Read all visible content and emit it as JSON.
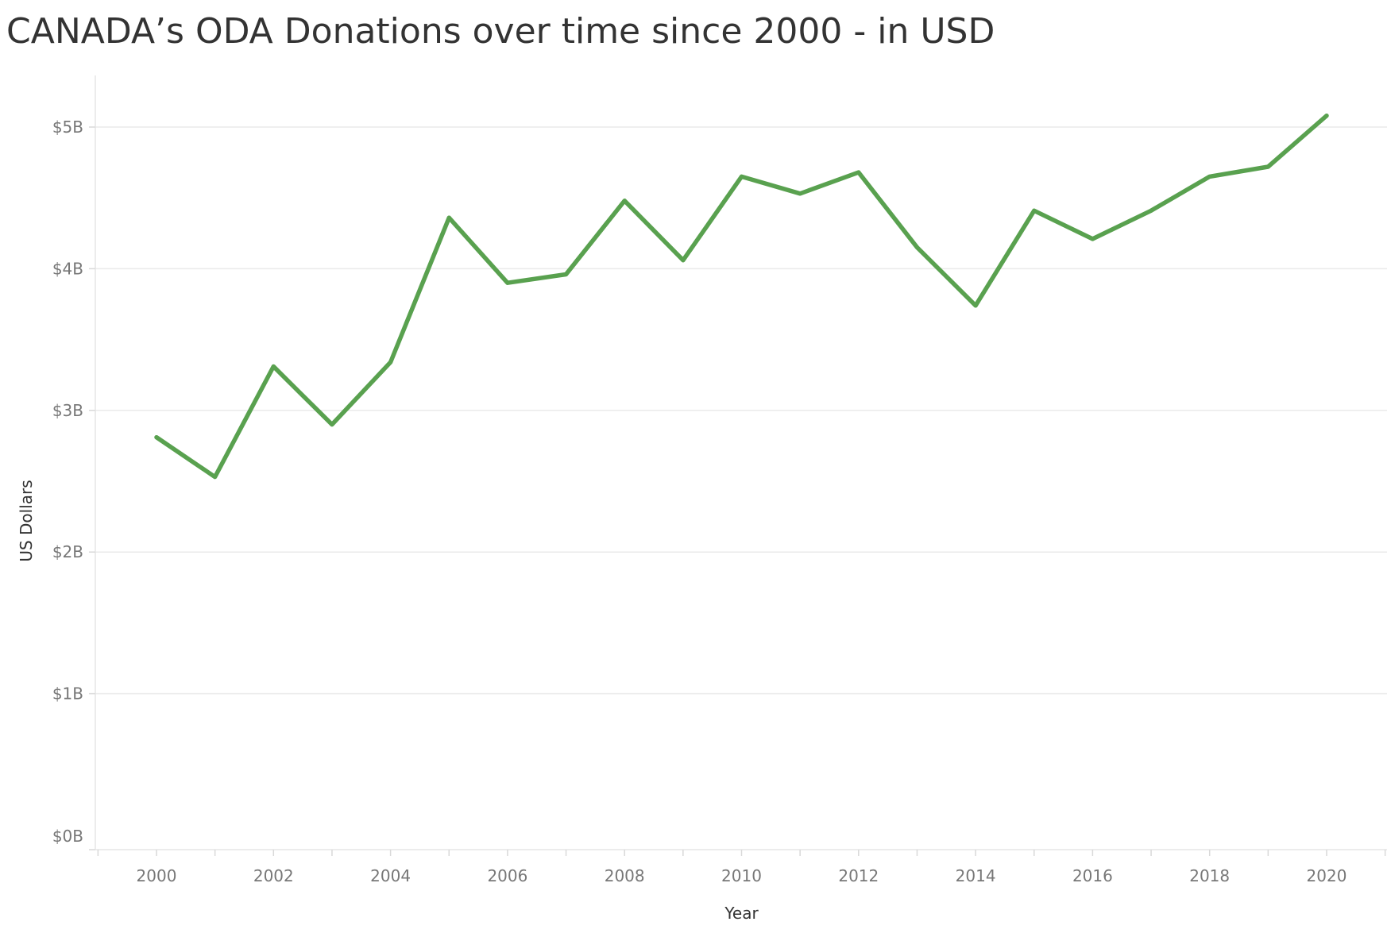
{
  "chart_data": {
    "type": "line",
    "title": "CANADA’s ODA Donations over time since 2000 - in USD",
    "xlabel": "Year",
    "ylabel": "US Dollars",
    "ylim": [
      0,
      5.3
    ],
    "xlim": [
      1999,
      2021
    ],
    "grid": true,
    "y_ticks": [
      0,
      1,
      2,
      3,
      4,
      5
    ],
    "y_tick_labels": [
      "$0B",
      "$1B",
      "$2B",
      "$3B",
      "$4B",
      "$5B"
    ],
    "x_ticks": [
      2000,
      2002,
      2004,
      2006,
      2008,
      2010,
      2012,
      2014,
      2016,
      2018,
      2020
    ],
    "x_tick_labels": [
      "2000",
      "2002",
      "2004",
      "2006",
      "2008",
      "2010",
      "2012",
      "2014",
      "2016",
      "2018",
      "2020"
    ],
    "line_color": "#59a14f",
    "series": [
      {
        "x": [
          2000,
          2001,
          2002,
          2003,
          2004,
          2005,
          2006,
          2007,
          2008,
          2009,
          2010,
          2011,
          2012,
          2013,
          2014,
          2015,
          2016,
          2017,
          2018,
          2019,
          2020
        ],
        "values": [
          2.81,
          2.53,
          3.31,
          2.9,
          3.34,
          4.36,
          3.9,
          3.96,
          4.48,
          4.06,
          4.65,
          4.53,
          4.68,
          4.15,
          3.74,
          4.41,
          4.21,
          4.41,
          4.65,
          4.72,
          5.08
        ]
      }
    ]
  }
}
